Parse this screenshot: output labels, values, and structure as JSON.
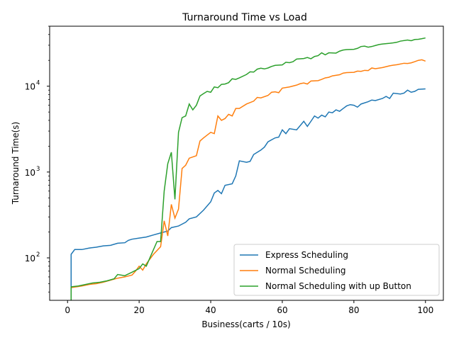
{
  "chart_data": {
    "type": "line",
    "title": "Turnaround Time vs Load",
    "xlabel": "Business(carts / 10s)",
    "ylabel": "Turnaround Time(s)",
    "xlim": [
      -5,
      105
    ],
    "ylim": [
      32,
      50000
    ],
    "yscale": "log",
    "grid": false,
    "legend_position": "lower-right",
    "x_ticks": [
      0,
      20,
      40,
      60,
      80,
      100
    ],
    "x_tick_labels": [
      "0",
      "20",
      "40",
      "60",
      "80",
      "100"
    ],
    "y_ticks": [
      100,
      1000,
      10000
    ],
    "y_tick_labels": [
      "10",
      "10",
      "10"
    ],
    "y_tick_exponents": [
      "2",
      "3",
      "4"
    ],
    "series": [
      {
        "name": "Express Scheduling",
        "color": "#1f77b4",
        "points": [
          [
            1,
            30
          ],
          [
            1,
            110
          ],
          [
            2,
            125
          ],
          [
            4,
            125
          ],
          [
            6,
            130
          ],
          [
            8,
            133
          ],
          [
            10,
            138
          ],
          [
            12,
            140
          ],
          [
            14,
            148
          ],
          [
            16,
            150
          ],
          [
            17,
            160
          ],
          [
            18,
            165
          ],
          [
            20,
            170
          ],
          [
            22,
            175
          ],
          [
            24,
            185
          ],
          [
            26,
            195
          ],
          [
            28,
            205
          ],
          [
            29,
            225
          ],
          [
            31,
            235
          ],
          [
            33,
            260
          ],
          [
            34,
            285
          ],
          [
            36,
            300
          ],
          [
            38,
            360
          ],
          [
            40,
            450
          ],
          [
            41,
            570
          ],
          [
            42,
            610
          ],
          [
            43,
            560
          ],
          [
            44,
            700
          ],
          [
            46,
            730
          ],
          [
            47,
            900
          ],
          [
            48,
            1350
          ],
          [
            50,
            1300
          ],
          [
            51,
            1330
          ],
          [
            52,
            1600
          ],
          [
            54,
            1800
          ],
          [
            55,
            1950
          ],
          [
            56,
            2250
          ],
          [
            58,
            2500
          ],
          [
            59,
            2550
          ],
          [
            60,
            3100
          ],
          [
            61,
            2800
          ],
          [
            62,
            3200
          ],
          [
            64,
            3100
          ],
          [
            66,
            3900
          ],
          [
            67,
            3400
          ],
          [
            68,
            3900
          ],
          [
            69,
            4500
          ],
          [
            70,
            4250
          ],
          [
            71,
            4600
          ],
          [
            72,
            4400
          ],
          [
            73,
            5000
          ],
          [
            74,
            4900
          ],
          [
            75,
            5300
          ],
          [
            76,
            5100
          ],
          [
            77,
            5500
          ],
          [
            78,
            5900
          ],
          [
            79,
            6100
          ],
          [
            80,
            6000
          ],
          [
            81,
            5700
          ],
          [
            82,
            6200
          ],
          [
            84,
            6600
          ],
          [
            85,
            6900
          ],
          [
            86,
            6800
          ],
          [
            88,
            7200
          ],
          [
            89,
            7600
          ],
          [
            90,
            7200
          ],
          [
            91,
            8300
          ],
          [
            93,
            8100
          ],
          [
            94,
            8300
          ],
          [
            95,
            9000
          ],
          [
            96,
            8500
          ],
          [
            97,
            8700
          ],
          [
            98,
            9200
          ],
          [
            100,
            9300
          ]
        ]
      },
      {
        "name": "Normal Scheduling",
        "color": "#ff7f0e",
        "points": [
          [
            1,
            45
          ],
          [
            4,
            47
          ],
          [
            6,
            49
          ],
          [
            8,
            50
          ],
          [
            10,
            52
          ],
          [
            12,
            55
          ],
          [
            14,
            58
          ],
          [
            16,
            60
          ],
          [
            18,
            63
          ],
          [
            19,
            70
          ],
          [
            20,
            80
          ],
          [
            21,
            72
          ],
          [
            22,
            85
          ],
          [
            24,
            110
          ],
          [
            26,
            135
          ],
          [
            27,
            270
          ],
          [
            28,
            180
          ],
          [
            29,
            420
          ],
          [
            30,
            290
          ],
          [
            31,
            370
          ],
          [
            32,
            1100
          ],
          [
            33,
            1200
          ],
          [
            34,
            1450
          ],
          [
            36,
            1550
          ],
          [
            37,
            2300
          ],
          [
            38,
            2500
          ],
          [
            40,
            2900
          ],
          [
            41,
            2800
          ],
          [
            42,
            4500
          ],
          [
            43,
            4000
          ],
          [
            44,
            4200
          ],
          [
            45,
            4700
          ],
          [
            46,
            4500
          ],
          [
            47,
            5500
          ],
          [
            48,
            5500
          ],
          [
            50,
            6200
          ],
          [
            52,
            6700
          ],
          [
            53,
            7400
          ],
          [
            54,
            7300
          ],
          [
            56,
            7800
          ],
          [
            57,
            8500
          ],
          [
            58,
            8600
          ],
          [
            59,
            8400
          ],
          [
            60,
            9500
          ],
          [
            62,
            9800
          ],
          [
            64,
            10300
          ],
          [
            65,
            10700
          ],
          [
            66,
            10900
          ],
          [
            67,
            10600
          ],
          [
            68,
            11500
          ],
          [
            70,
            11600
          ],
          [
            71,
            12000
          ],
          [
            72,
            12500
          ],
          [
            73,
            12700
          ],
          [
            74,
            13200
          ],
          [
            76,
            13600
          ],
          [
            77,
            14200
          ],
          [
            78,
            14400
          ],
          [
            80,
            14500
          ],
          [
            81,
            15000
          ],
          [
            82,
            14900
          ],
          [
            83,
            15300
          ],
          [
            84,
            15200
          ],
          [
            85,
            16300
          ],
          [
            86,
            16000
          ],
          [
            88,
            16500
          ],
          [
            90,
            17300
          ],
          [
            91,
            17600
          ],
          [
            92,
            17800
          ],
          [
            94,
            18500
          ],
          [
            95,
            18400
          ],
          [
            96,
            18700
          ],
          [
            97,
            19300
          ],
          [
            98,
            20000
          ],
          [
            99,
            20300
          ],
          [
            100,
            19600
          ]
        ]
      },
      {
        "name": "Normal Scheduling with up Button",
        "color": "#2ca02c",
        "points": [
          [
            1,
            30
          ],
          [
            1,
            46
          ],
          [
            3,
            47
          ],
          [
            5,
            49
          ],
          [
            7,
            51
          ],
          [
            9,
            52
          ],
          [
            11,
            54
          ],
          [
            13,
            57
          ],
          [
            14,
            64
          ],
          [
            16,
            62
          ],
          [
            18,
            68
          ],
          [
            20,
            75
          ],
          [
            21,
            85
          ],
          [
            22,
            80
          ],
          [
            23,
            100
          ],
          [
            25,
            155
          ],
          [
            26,
            155
          ],
          [
            27,
            600
          ],
          [
            28,
            1250
          ],
          [
            29,
            1700
          ],
          [
            30,
            480
          ],
          [
            31,
            2900
          ],
          [
            32,
            4300
          ],
          [
            33,
            4500
          ],
          [
            34,
            6200
          ],
          [
            35,
            5300
          ],
          [
            36,
            6000
          ],
          [
            37,
            7700
          ],
          [
            38,
            8200
          ],
          [
            39,
            8700
          ],
          [
            40,
            8500
          ],
          [
            41,
            9800
          ],
          [
            42,
            9600
          ],
          [
            43,
            10500
          ],
          [
            44,
            10600
          ],
          [
            45,
            11000
          ],
          [
            46,
            12200
          ],
          [
            47,
            12000
          ],
          [
            48,
            12500
          ],
          [
            50,
            13700
          ],
          [
            51,
            14700
          ],
          [
            52,
            14600
          ],
          [
            53,
            15800
          ],
          [
            54,
            16200
          ],
          [
            55,
            15900
          ],
          [
            56,
            16300
          ],
          [
            57,
            17000
          ],
          [
            58,
            17500
          ],
          [
            60,
            17700
          ],
          [
            61,
            19000
          ],
          [
            62,
            18800
          ],
          [
            63,
            19300
          ],
          [
            64,
            20700
          ],
          [
            66,
            21000
          ],
          [
            67,
            21600
          ],
          [
            68,
            20900
          ],
          [
            69,
            22200
          ],
          [
            70,
            22700
          ],
          [
            71,
            24500
          ],
          [
            72,
            23200
          ],
          [
            73,
            24500
          ],
          [
            75,
            24300
          ],
          [
            76,
            25600
          ],
          [
            77,
            26400
          ],
          [
            78,
            26700
          ],
          [
            80,
            26900
          ],
          [
            81,
            27600
          ],
          [
            82,
            29000
          ],
          [
            83,
            29300
          ],
          [
            84,
            28500
          ],
          [
            85,
            29000
          ],
          [
            86,
            29800
          ],
          [
            87,
            30600
          ],
          [
            88,
            31000
          ],
          [
            90,
            31600
          ],
          [
            91,
            32000
          ],
          [
            92,
            32500
          ],
          [
            93,
            33500
          ],
          [
            95,
            34500
          ],
          [
            96,
            33900
          ],
          [
            97,
            35000
          ],
          [
            98,
            35200
          ],
          [
            99,
            35800
          ],
          [
            100,
            36500
          ]
        ]
      }
    ]
  }
}
